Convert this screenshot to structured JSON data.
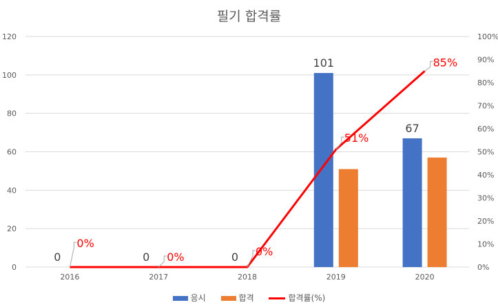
{
  "chart_data": {
    "type": "bar",
    "title": "필기 합격률",
    "categories": [
      "2016",
      "2017",
      "2018",
      "2019",
      "2020"
    ],
    "series": [
      {
        "name": "응시",
        "type": "bar",
        "axis": "left",
        "color": "#4472c4",
        "values": [
          0,
          0,
          0,
          101,
          67
        ]
      },
      {
        "name": "합격",
        "type": "bar",
        "axis": "left",
        "color": "#ed7d31",
        "values": [
          0,
          0,
          0,
          51,
          57
        ]
      },
      {
        "name": "합격률(%)",
        "type": "line",
        "axis": "right",
        "color": "#ff0000",
        "values": [
          0,
          0,
          0,
          0.51,
          0.85
        ]
      }
    ],
    "left_ticks": [
      "0",
      "20",
      "40",
      "60",
      "80",
      "100",
      "120"
    ],
    "right_ticks": [
      "0%",
      "10%",
      "20%",
      "30%",
      "40%",
      "50%",
      "60%",
      "70%",
      "80%",
      "90%",
      "100%"
    ],
    "ylim": [
      0,
      120
    ],
    "y2lim": [
      0,
      1
    ],
    "bar_data_labels": [
      "0",
      "0",
      "0",
      "101",
      "67"
    ],
    "rate_data_labels": [
      "0%",
      "0%",
      "0%",
      "51%",
      "85%"
    ],
    "grid": true,
    "legend_position": "bottom"
  }
}
